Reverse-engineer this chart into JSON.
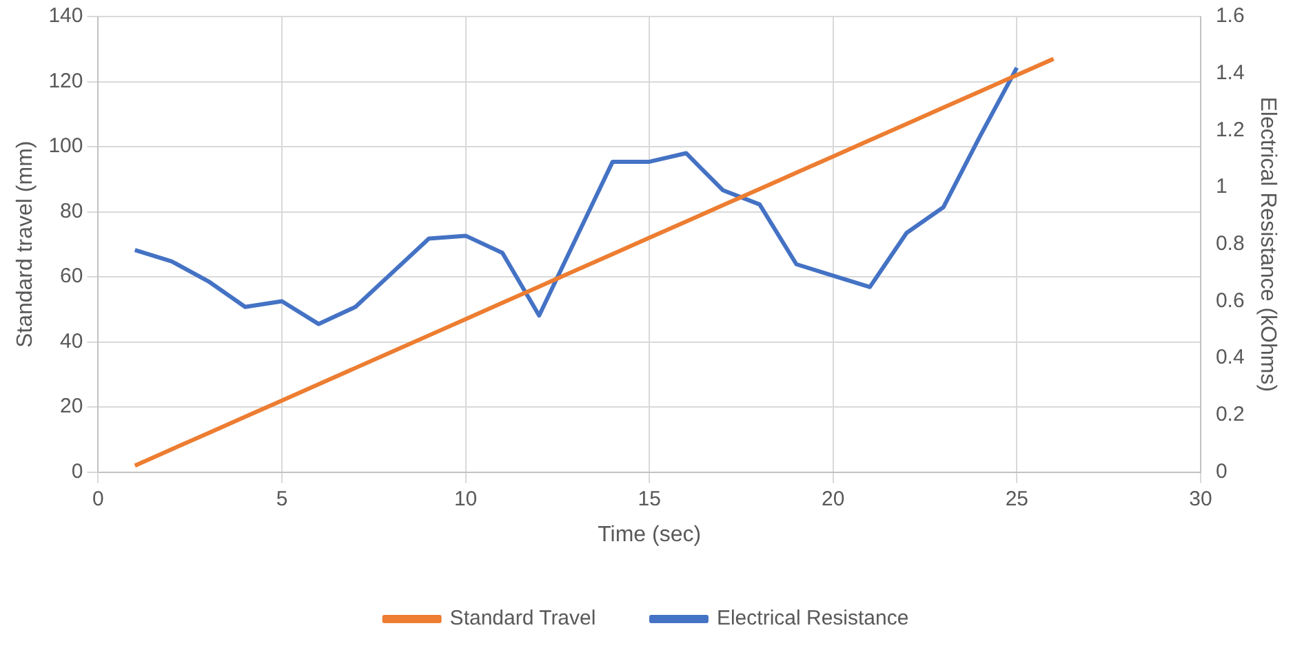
{
  "chart_data": {
    "type": "line",
    "xlabel": "Time (sec)",
    "ylabel": "Standard travel (mm)",
    "y2label": "Electrical Resistance (kOhms)",
    "xlim": [
      0,
      30
    ],
    "xticks": [
      0,
      5,
      10,
      15,
      20,
      25,
      30
    ],
    "ylim": [
      0,
      140
    ],
    "yticks": [
      0,
      20,
      40,
      60,
      80,
      100,
      120,
      140
    ],
    "y2lim": [
      0,
      1.6
    ],
    "y2ticks": [
      0,
      0.2,
      0.4,
      0.6,
      0.8,
      1,
      1.2,
      1.4,
      1.6
    ],
    "grid": true,
    "legend": "bottom",
    "marker": "none",
    "line_style": "solid",
    "series": [
      {
        "name": "Standard Travel",
        "color": "#ed7d31",
        "x": [
          1,
          2,
          3,
          4,
          5,
          6,
          7,
          8,
          9,
          10,
          11,
          12,
          13,
          14,
          15,
          16,
          17,
          18,
          19,
          20,
          21,
          22,
          23,
          24,
          25,
          26
        ],
        "values": [
          2,
          7,
          12,
          17,
          22,
          27,
          32,
          37,
          42,
          47,
          52,
          57,
          62,
          67,
          72,
          77,
          82,
          87,
          92,
          97,
          102,
          107,
          112,
          117,
          122,
          127
        ]
      },
      {
        "name": "Electrical Resistance",
        "color": "#4472c4",
        "axis": "y2",
        "x": [
          1,
          2,
          3,
          4,
          5,
          6,
          7,
          8,
          9,
          10,
          11,
          12,
          13,
          14,
          15,
          16,
          17,
          18,
          19,
          20,
          21,
          22,
          23,
          24,
          25
        ],
        "values": [
          0.78,
          0.74,
          0.67,
          0.58,
          0.6,
          0.52,
          0.58,
          0.7,
          0.82,
          0.83,
          0.77,
          0.55,
          0.82,
          1.09,
          1.09,
          1.12,
          0.99,
          0.94,
          0.73,
          0.69,
          0.65,
          0.84,
          0.93,
          1.18,
          1.42
        ]
      }
    ]
  }
}
